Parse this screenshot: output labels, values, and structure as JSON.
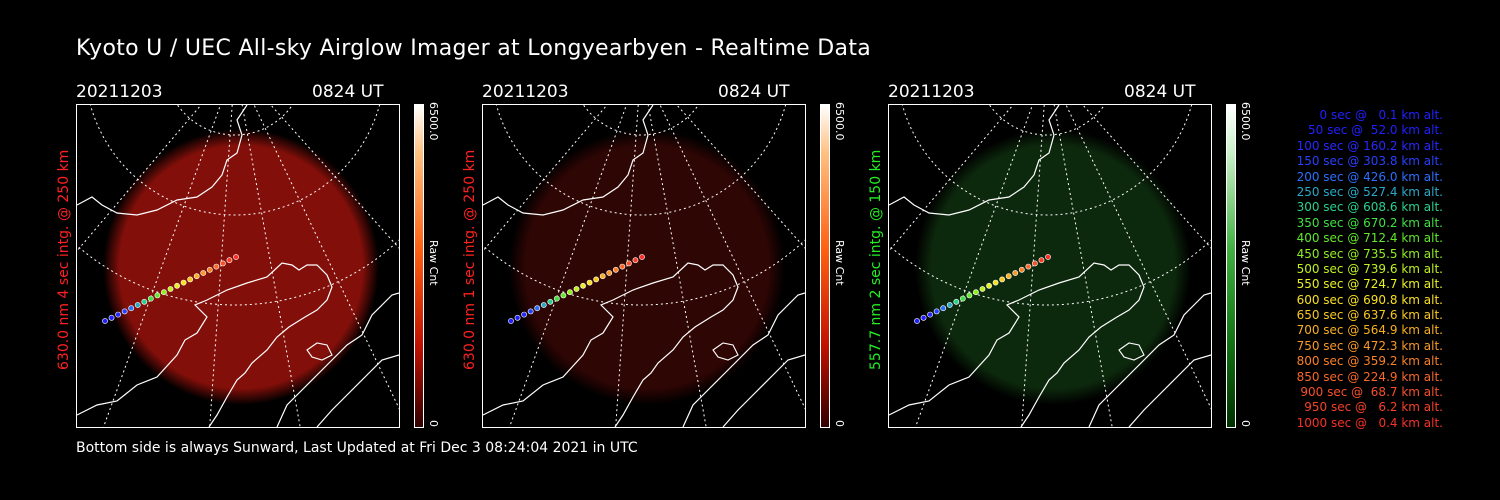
{
  "title": "Kyoto U / UEC All-sky Airglow Imager at Longyearbyen - Realtime Data",
  "footer": "Bottom side is always Sunward, Last Updated at Fri Dec  3 08:24:04 2021 in UTC",
  "panels": [
    {
      "date": "20211203",
      "time": "0824 UT",
      "ylabel": "630.0 nm 4 sec intg. @ 250 km",
      "label_color": "#ff2020",
      "tint": "#7a0c08",
      "intensity": 0.9,
      "cbar_max": "6500.0",
      "cbar_min": "0",
      "cbar_label": "Raw Cnt",
      "cbar_color": "#ff5500"
    },
    {
      "date": "20211203",
      "time": "0824 UT",
      "ylabel": "630.0 nm 1 sec intg. @ 250 km",
      "label_color": "#ff2020",
      "tint": "#3a0605",
      "intensity": 0.6,
      "cbar_max": "6500.0",
      "cbar_min": "0",
      "cbar_label": "Raw Cnt",
      "cbar_color": "#ff5500"
    },
    {
      "date": "20211203",
      "time": "0824 UT",
      "ylabel": "557.7 nm 2 sec intg. @ 150 km",
      "label_color": "#22ee22",
      "tint": "#0d2a0d",
      "intensity": 0.6,
      "cbar_max": "6500.0",
      "cbar_min": "0",
      "cbar_label": "Raw Cnt",
      "cbar_color": "#22aa22"
    }
  ],
  "legend": [
    {
      "text": "0 sec @   0.1 km alt.",
      "color": "#2020ff"
    },
    {
      "text": "50 sec @  52.0 km alt.",
      "color": "#2020ff"
    },
    {
      "text": "100 sec @ 160.2 km alt.",
      "color": "#2828ff"
    },
    {
      "text": "150 sec @ 303.8 km alt.",
      "color": "#2840ff"
    },
    {
      "text": "200 sec @ 426.0 km alt.",
      "color": "#2a70ff"
    },
    {
      "text": "250 sec @ 527.4 km alt.",
      "color": "#2aa8c8"
    },
    {
      "text": "300 sec @ 608.6 km alt.",
      "color": "#2ad090"
    },
    {
      "text": "350 sec @ 670.2 km alt.",
      "color": "#40e040"
    },
    {
      "text": "400 sec @ 712.4 km alt.",
      "color": "#60e828"
    },
    {
      "text": "450 sec @ 735.5 km alt.",
      "color": "#90ee20"
    },
    {
      "text": "500 sec @ 739.6 km alt.",
      "color": "#c0f020"
    },
    {
      "text": "550 sec @ 724.7 km alt.",
      "color": "#e8f020"
    },
    {
      "text": "600 sec @ 690.8 km alt.",
      "color": "#f8e020"
    },
    {
      "text": "650 sec @ 637.6 km alt.",
      "color": "#f8c820"
    },
    {
      "text": "700 sec @ 564.9 km alt.",
      "color": "#f8b020"
    },
    {
      "text": "750 sec @ 472.3 km alt.",
      "color": "#f89828"
    },
    {
      "text": "800 sec @ 359.2 km alt.",
      "color": "#f88028"
    },
    {
      "text": "850 sec @ 224.9 km alt.",
      "color": "#f86828"
    },
    {
      "text": "900 sec @  68.7 km alt.",
      "color": "#f85028"
    },
    {
      "text": "950 sec @   6.2 km alt.",
      "color": "#f84028"
    },
    {
      "text": "1000 sec @   0.4 km alt.",
      "color": "#f83028"
    }
  ]
}
